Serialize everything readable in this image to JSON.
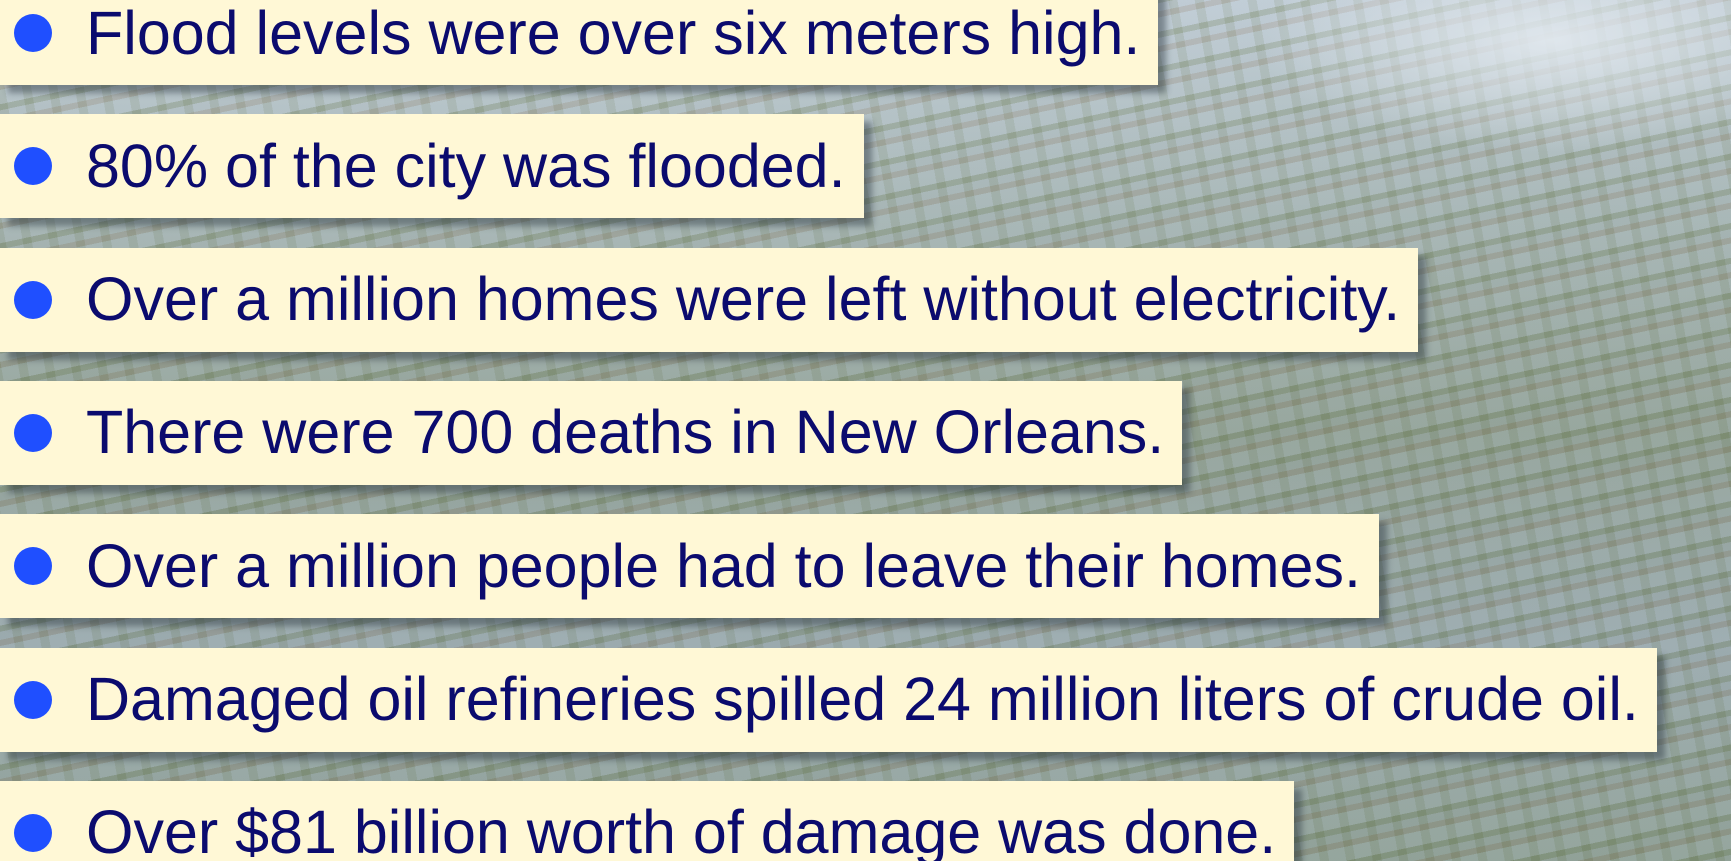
{
  "bullets": [
    "Flood levels were over six meters high.",
    "80% of the city was flooded.",
    "Over a million homes were left without electricity.",
    "There were 700 deaths in New Orleans.",
    "Over a million people had to leave their homes.",
    "Damaged oil refineries spilled 24 million liters of crude oil.",
    "Over $81 billion worth of damage was done."
  ]
}
